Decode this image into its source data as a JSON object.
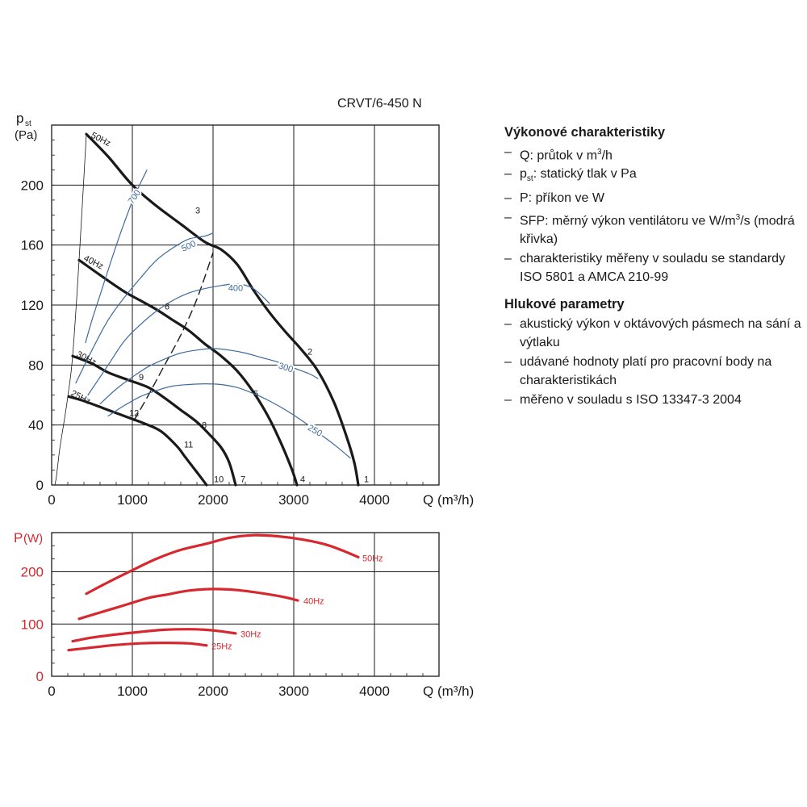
{
  "model_title": "CRVT/6-450 N",
  "colors": {
    "black": "#1a1a1a",
    "blue": "#3d6a9e",
    "red": "#d7282f",
    "grid": "#1a1a1a"
  },
  "chart_data": [
    {
      "type": "line",
      "ylabel_main": "p",
      "ylabel_sub": "st",
      "ylabel_unit": "(Pa)",
      "xlabel": "Q (m³/h)",
      "xlim": [
        0,
        4800
      ],
      "ylim": [
        0,
        240
      ],
      "xticks": [
        0,
        1000,
        2000,
        3000,
        4000
      ],
      "yticks": [
        0,
        40,
        80,
        120,
        160,
        200
      ],
      "grid": true,
      "series": [
        {
          "name": "50Hz",
          "color": "black",
          "width": 3.2,
          "points": [
            [
              430,
              234
            ],
            [
              700,
              219
            ],
            [
              1000,
              200
            ],
            [
              1300,
              186
            ],
            [
              1600,
              174
            ],
            [
              1900,
              162
            ],
            [
              2100,
              157
            ],
            [
              2300,
              147
            ],
            [
              2500,
              130
            ],
            [
              2700,
              115
            ],
            [
              2900,
              102
            ],
            [
              3100,
              90
            ],
            [
              3300,
              76
            ],
            [
              3500,
              55
            ],
            [
              3650,
              33
            ],
            [
              3750,
              15
            ],
            [
              3800,
              0
            ]
          ]
        },
        {
          "name": "40Hz",
          "color": "black",
          "width": 3.2,
          "points": [
            [
              340,
              150
            ],
            [
              600,
              140
            ],
            [
              900,
              129
            ],
            [
              1100,
              123
            ],
            [
              1300,
              117
            ],
            [
              1500,
              110
            ],
            [
              1700,
              103
            ],
            [
              1900,
              94
            ],
            [
              2100,
              86
            ],
            [
              2300,
              76
            ],
            [
              2500,
              62
            ],
            [
              2700,
              44
            ],
            [
              2850,
              27
            ],
            [
              2980,
              10
            ],
            [
              3040,
              0
            ]
          ]
        },
        {
          "name": "30Hz",
          "color": "black",
          "width": 3.2,
          "points": [
            [
              260,
              86
            ],
            [
              500,
              81
            ],
            [
              700,
              75
            ],
            [
              950,
              70
            ],
            [
              1200,
              65
            ],
            [
              1400,
              58
            ],
            [
              1600,
              50
            ],
            [
              1800,
              42
            ],
            [
              1950,
              34
            ],
            [
              2100,
              25
            ],
            [
              2200,
              15
            ],
            [
              2280,
              0
            ]
          ]
        },
        {
          "name": "25Hz",
          "color": "black",
          "width": 3.2,
          "points": [
            [
              210,
              59
            ],
            [
              400,
              56
            ],
            [
              650,
              51
            ],
            [
              900,
              46
            ],
            [
              1150,
              41
            ],
            [
              1350,
              36
            ],
            [
              1550,
              26
            ],
            [
              1650,
              19
            ],
            [
              1750,
              12
            ],
            [
              1850,
              5
            ],
            [
              1920,
              0
            ]
          ]
        },
        {
          "name": "",
          "color": "black",
          "width": 0.8,
          "points": [
            [
              40,
              0
            ],
            [
              60,
              6
            ],
            [
              100,
              24
            ],
            [
              150,
              41
            ],
            [
              200,
              59
            ],
            [
              260,
              86
            ],
            [
              340,
              150
            ],
            [
              430,
              234
            ]
          ]
        },
        {
          "name": "",
          "color": "black",
          "width": 1.4,
          "dash": "10,6",
          "points": [
            [
              1020,
              43
            ],
            [
              1200,
              60
            ],
            [
              1400,
              80
            ],
            [
              1600,
              100
            ],
            [
              1800,
              124
            ],
            [
              2000,
              155
            ]
          ]
        },
        {
          "name": "",
          "color": "blue",
          "width": 1.2,
          "points": [
            [
              420,
              95
            ],
            [
              500,
              110
            ],
            [
              620,
              130
            ],
            [
              740,
              150
            ],
            [
              880,
              172
            ],
            [
              1030,
              193
            ],
            [
              1180,
              210
            ]
          ]
        },
        {
          "name": "",
          "color": "blue",
          "width": 1.2,
          "points": [
            [
              300,
              68
            ],
            [
              500,
              90
            ],
            [
              700,
              110
            ],
            [
              900,
              125
            ],
            [
              1100,
              138
            ],
            [
              1300,
              150
            ],
            [
              1500,
              158
            ],
            [
              1700,
              164
            ],
            [
              1900,
              166
            ],
            [
              2000,
              168
            ]
          ]
        },
        {
          "name": "",
          "color": "blue",
          "width": 1.2,
          "points": [
            [
              450,
              60
            ],
            [
              700,
              80
            ],
            [
              900,
              96
            ],
            [
              1100,
              107
            ],
            [
              1300,
              116
            ],
            [
              1500,
              123
            ],
            [
              1700,
              128
            ],
            [
              1900,
              131
            ],
            [
              2100,
              133
            ],
            [
              2300,
              134
            ],
            [
              2500,
              131
            ],
            [
              2700,
              121
            ]
          ]
        },
        {
          "name": "",
          "color": "blue",
          "width": 1.2,
          "points": [
            [
              600,
              54
            ],
            [
              800,
              64
            ],
            [
              1000,
              72
            ],
            [
              1200,
              79
            ],
            [
              1400,
              84
            ],
            [
              1600,
              88
            ],
            [
              1800,
              90
            ],
            [
              2000,
              91
            ],
            [
              2200,
              90
            ],
            [
              2400,
              88
            ],
            [
              2600,
              85
            ],
            [
              2800,
              82
            ],
            [
              3000,
              78
            ],
            [
              3200,
              74
            ],
            [
              3300,
              71
            ]
          ]
        },
        {
          "name": "",
          "color": "blue",
          "width": 1.2,
          "points": [
            [
              700,
              46
            ],
            [
              900,
              53
            ],
            [
              1100,
              59
            ],
            [
              1300,
              63
            ],
            [
              1500,
              66
            ],
            [
              1700,
              67
            ],
            [
              1900,
              67.5
            ],
            [
              2100,
              67
            ],
            [
              2300,
              65
            ],
            [
              2500,
              61
            ],
            [
              2700,
              56
            ],
            [
              2900,
              50
            ],
            [
              3100,
              43
            ],
            [
              3300,
              35
            ],
            [
              3500,
              27
            ],
            [
              3700,
              18
            ]
          ]
        }
      ],
      "labels": [
        {
          "text": "50Hz",
          "x": 480,
          "y": 232,
          "color": "black",
          "rotate": 27
        },
        {
          "text": "40Hz",
          "x": 390,
          "y": 150,
          "color": "black",
          "rotate": 27
        },
        {
          "text": "30Hz",
          "x": 300,
          "y": 86,
          "color": "black",
          "rotate": 27
        },
        {
          "text": "25Hz",
          "x": 230,
          "y": 60,
          "color": "black",
          "rotate": 27
        },
        {
          "text": "1",
          "x": 3870,
          "y": 2,
          "color": "black",
          "rotate": 0
        },
        {
          "text": "2",
          "x": 3170,
          "y": 87,
          "color": "black",
          "rotate": 0
        },
        {
          "text": "3",
          "x": 1780,
          "y": 181,
          "color": "black",
          "rotate": 0
        },
        {
          "text": "4",
          "x": 3080,
          "y": 2,
          "color": "black",
          "rotate": 0
        },
        {
          "text": "5",
          "x": 2500,
          "y": 59,
          "color": "black",
          "rotate": 0
        },
        {
          "text": "6",
          "x": 1400,
          "y": 117,
          "color": "black",
          "rotate": 0
        },
        {
          "text": "7",
          "x": 2340,
          "y": 2,
          "color": "black",
          "rotate": 0
        },
        {
          "text": "8",
          "x": 1860,
          "y": 38,
          "color": "black",
          "rotate": 0
        },
        {
          "text": "9",
          "x": 1080,
          "y": 70,
          "color": "black",
          "rotate": 0
        },
        {
          "text": "10",
          "x": 2010,
          "y": 2,
          "color": "black",
          "rotate": 0
        },
        {
          "text": "11",
          "x": 1640,
          "y": 25,
          "color": "black",
          "rotate": 0
        },
        {
          "text": "12",
          "x": 960,
          "y": 46,
          "color": "black",
          "rotate": 0
        },
        {
          "text": "700",
          "x": 1030,
          "y": 192,
          "color": "blue",
          "rotate": -55
        },
        {
          "text": "500",
          "x": 1700,
          "y": 159,
          "color": "blue",
          "rotate": -25
        },
        {
          "text": "400",
          "x": 2280,
          "y": 131,
          "color": "blue",
          "rotate": 0
        },
        {
          "text": "300",
          "x": 2900,
          "y": 78,
          "color": "blue",
          "rotate": 18
        },
        {
          "text": "250",
          "x": 3260,
          "y": 36,
          "color": "blue",
          "rotate": 30
        }
      ]
    },
    {
      "type": "line",
      "ylabel_main": "P",
      "ylabel_unit": "(W)",
      "xlabel": "Q (m³/h)",
      "xlim": [
        0,
        4800
      ],
      "ylim": [
        0,
        275
      ],
      "xticks": [
        0,
        1000,
        2000,
        3000,
        4000
      ],
      "yticks": [
        0,
        100,
        200
      ],
      "grid": true,
      "series": [
        {
          "name": "50Hz",
          "color": "red",
          "width": 3.2,
          "points": [
            [
              430,
              158
            ],
            [
              700,
              180
            ],
            [
              1000,
              203
            ],
            [
              1300,
              225
            ],
            [
              1600,
              242
            ],
            [
              1900,
              253
            ],
            [
              2200,
              265
            ],
            [
              2500,
              270
            ],
            [
              2800,
              268
            ],
            [
              3100,
              262
            ],
            [
              3400,
              252
            ],
            [
              3600,
              241
            ],
            [
              3800,
              228
            ]
          ]
        },
        {
          "name": "40Hz",
          "color": "red",
          "width": 3.2,
          "points": [
            [
              340,
              110
            ],
            [
              600,
              122
            ],
            [
              900,
              136
            ],
            [
              1200,
              150
            ],
            [
              1450,
              157
            ],
            [
              1700,
              164
            ],
            [
              2000,
              167
            ],
            [
              2300,
              165
            ],
            [
              2600,
              159
            ],
            [
              2900,
              151
            ],
            [
              3050,
              145
            ]
          ]
        },
        {
          "name": "30Hz",
          "color": "red",
          "width": 3.2,
          "points": [
            [
              260,
              67
            ],
            [
              500,
              74
            ],
            [
              800,
              80
            ],
            [
              1100,
              85
            ],
            [
              1400,
              89
            ],
            [
              1700,
              90
            ],
            [
              1900,
              89
            ],
            [
              2100,
              86
            ],
            [
              2280,
              82
            ]
          ]
        },
        {
          "name": "25Hz",
          "color": "red",
          "width": 3.2,
          "points": [
            [
              210,
              50
            ],
            [
              500,
              55
            ],
            [
              800,
              60
            ],
            [
              1100,
              63
            ],
            [
              1400,
              64
            ],
            [
              1700,
              63
            ],
            [
              1920,
              59
            ]
          ]
        }
      ],
      "labels": [
        {
          "text": "50Hz",
          "x": 3850,
          "y": 220,
          "color": "red",
          "rotate": 0
        },
        {
          "text": "40Hz",
          "x": 3120,
          "y": 138,
          "color": "red",
          "rotate": 0
        },
        {
          "text": "30Hz",
          "x": 2340,
          "y": 75,
          "color": "red",
          "rotate": 0
        },
        {
          "text": "25Hz",
          "x": 1980,
          "y": 52,
          "color": "red",
          "rotate": 0
        }
      ]
    }
  ],
  "side": {
    "performance_title": "Výkonové charakteristiky",
    "performance_items": [
      {
        "before": "Q: průtok v m",
        "sup": "3",
        "after": "/h"
      },
      {
        "p": "p",
        "sub": "st",
        "after": ": statický tlak v Pa"
      },
      {
        "text": "P: příkon ve W"
      },
      {
        "before": "SFP: měrný výkon ventilátoru ve W/m",
        "sup": "3",
        "after": "/s (modrá křivka)"
      },
      {
        "text": "charakteristiky měřeny v souladu se standardy ISO 5801 a AMCA 210-99"
      }
    ],
    "noise_title": "Hlukové parametry",
    "noise_items": [
      "akustický výkon v oktávových pásmech na sání a výtlaku",
      "udávané hodnoty platí pro pracovní body na charakteristikách",
      "měřeno v souladu s ISO 13347-3 2004"
    ]
  }
}
